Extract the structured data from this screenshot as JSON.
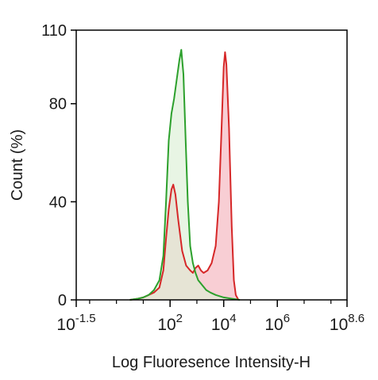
{
  "chart_data": {
    "type": "area",
    "title": "",
    "xlabel": "Log Fluoresence Intensity-H",
    "ylabel": "Count  (%)",
    "x_scale": "log10",
    "xlim_log10": [
      -1.5,
      8.6
    ],
    "ylim": [
      0,
      110
    ],
    "grid": false,
    "legend": "none",
    "y_ticks": [
      {
        "value": 0,
        "label": "0"
      },
      {
        "value": 40,
        "label": "40"
      },
      {
        "value": 80,
        "label": "80"
      },
      {
        "value": 110,
        "label": "110"
      }
    ],
    "x_ticks": [
      {
        "exp": -1.5,
        "base": "10",
        "sup": "-1.5"
      },
      {
        "exp": 2,
        "base": "10",
        "sup": "2"
      },
      {
        "exp": 4,
        "base": "10",
        "sup": "4"
      },
      {
        "exp": 6,
        "base": "10",
        "sup": "6"
      },
      {
        "exp": 8.6,
        "base": "10",
        "sup": "8.6"
      }
    ],
    "series": [
      {
        "color": "#d62728",
        "fill": "#f7c6cc",
        "points_log10x_y": [
          [
            0.5,
            0
          ],
          [
            0.8,
            0.5
          ],
          [
            1.0,
            1
          ],
          [
            1.2,
            2
          ],
          [
            1.4,
            3
          ],
          [
            1.6,
            5
          ],
          [
            1.75,
            12
          ],
          [
            1.85,
            25
          ],
          [
            1.95,
            37
          ],
          [
            2.05,
            45
          ],
          [
            2.12,
            47
          ],
          [
            2.2,
            43
          ],
          [
            2.3,
            33
          ],
          [
            2.45,
            20
          ],
          [
            2.6,
            14
          ],
          [
            2.75,
            12
          ],
          [
            2.85,
            11
          ],
          [
            2.95,
            13
          ],
          [
            3.05,
            14
          ],
          [
            3.15,
            12
          ],
          [
            3.25,
            11
          ],
          [
            3.4,
            12
          ],
          [
            3.55,
            15
          ],
          [
            3.7,
            22
          ],
          [
            3.82,
            40
          ],
          [
            3.92,
            70
          ],
          [
            4.0,
            95
          ],
          [
            4.05,
            101
          ],
          [
            4.1,
            96
          ],
          [
            4.2,
            70
          ],
          [
            4.3,
            30
          ],
          [
            4.38,
            8
          ],
          [
            4.45,
            2
          ],
          [
            4.55,
            0
          ]
        ]
      },
      {
        "color": "#2ca02c",
        "fill": "#dcefd6",
        "points_log10x_y": [
          [
            0.5,
            0
          ],
          [
            0.8,
            0.5
          ],
          [
            1.0,
            1
          ],
          [
            1.2,
            2
          ],
          [
            1.4,
            4
          ],
          [
            1.6,
            8
          ],
          [
            1.75,
            18
          ],
          [
            1.85,
            40
          ],
          [
            1.95,
            65
          ],
          [
            2.05,
            76
          ],
          [
            2.15,
            82
          ],
          [
            2.25,
            90
          ],
          [
            2.35,
            98
          ],
          [
            2.42,
            102
          ],
          [
            2.5,
            92
          ],
          [
            2.58,
            65
          ],
          [
            2.66,
            40
          ],
          [
            2.75,
            22
          ],
          [
            2.85,
            15
          ],
          [
            2.95,
            11
          ],
          [
            3.05,
            8
          ],
          [
            3.2,
            6
          ],
          [
            3.35,
            4
          ],
          [
            3.5,
            3
          ],
          [
            3.7,
            2
          ],
          [
            4.0,
            1
          ],
          [
            4.3,
            0.5
          ],
          [
            4.6,
            0
          ]
        ]
      }
    ]
  }
}
